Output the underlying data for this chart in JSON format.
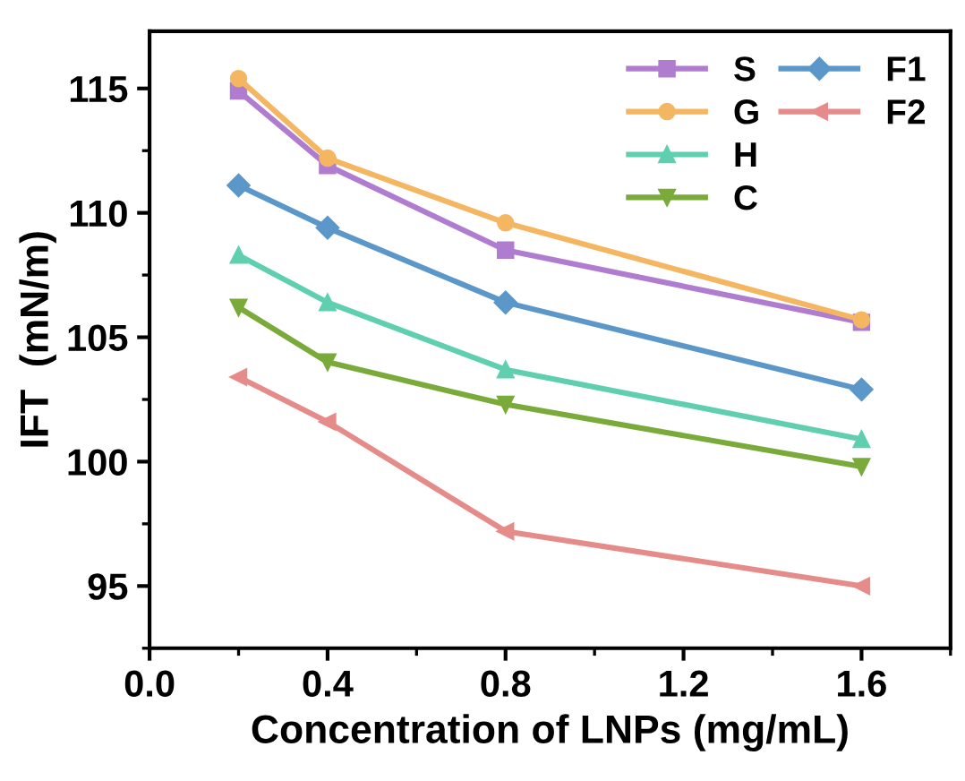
{
  "chart_data": {
    "type": "line",
    "xlabel": "Concentration of LNPs (mg/mL)",
    "ylabel": "IFT  (mN/m)",
    "x": [
      0.2,
      0.4,
      0.8,
      1.6
    ],
    "xlim": [
      0.0,
      1.8
    ],
    "xticks": [
      {
        "value": 0,
        "label": "0.0"
      },
      {
        "value": 0.4,
        "label": "0.4"
      },
      {
        "value": 0.8,
        "label": "0.8"
      },
      {
        "value": 1.2,
        "label": "1.2"
      },
      {
        "value": 1.6,
        "label": "1.6"
      }
    ],
    "ylim": [
      92.5,
      117.3
    ],
    "yticks": [
      95,
      100,
      105,
      110,
      115
    ],
    "grid": false,
    "legend": "top right",
    "line_style": "solid",
    "series": [
      {
        "name": "S",
        "color": "#b07cd0",
        "marker": "square",
        "values": [
          114.9,
          111.9,
          108.5,
          105.6
        ]
      },
      {
        "name": "G",
        "color": "#f5b661",
        "marker": "circle",
        "values": [
          115.4,
          112.2,
          109.6,
          105.7
        ]
      },
      {
        "name": "H",
        "color": "#5fcfb0",
        "marker": "triangle",
        "values": [
          108.3,
          106.4,
          103.7,
          100.9
        ]
      },
      {
        "name": "C",
        "color": "#7aaa3a",
        "marker": "triangle_down",
        "values": [
          106.2,
          104.0,
          102.3,
          99.8
        ]
      },
      {
        "name": "F1",
        "color": "#5b97c9",
        "marker": "diamond",
        "values": [
          111.1,
          109.4,
          106.4,
          102.9
        ]
      },
      {
        "name": "F2",
        "color": "#e58c8a",
        "marker": "triangle_left",
        "values": [
          103.4,
          101.6,
          97.2,
          95.0
        ]
      }
    ]
  }
}
